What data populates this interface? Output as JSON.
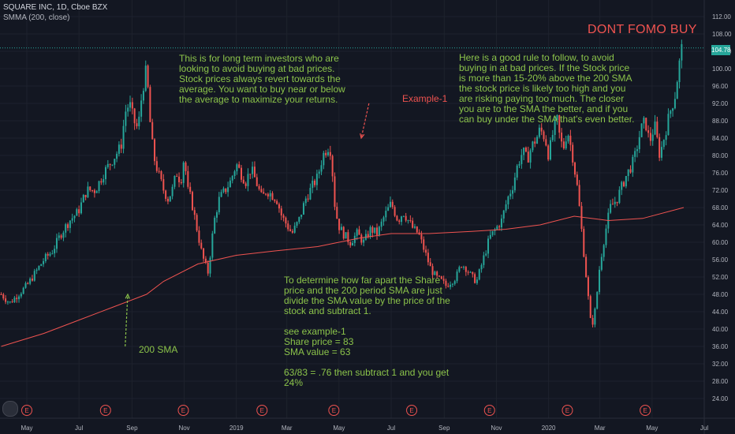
{
  "header": {
    "symbol_title": "SQUARE INC, 1D, Cboe BZX",
    "indicator": "SMMA (200, close)"
  },
  "annotations": {
    "headline": "DONT FOMO BUY",
    "note_left": "This is for long term investors who are\nlooking to avoid buying at bad prices.\nStock prices always revert towards the\naverage. You want to buy near or below\nthe average to maximize your returns.",
    "note_right": "Here is a good rule to follow, to avoid\nbuying in at bad prices. If the Stock price\nis more than 15-20% above the 200 SMA\nthe stock price is likely too high and you\nare risking paying too much. The closer\nyou are to the SMA the better, and if you\ncan buy under the SMA that's even better.",
    "note_bottom": "To determine how far apart the Share\nprice and the 200 period SMA are just\ndivide the SMA value by the price of the\nstock and subtract 1.\n\nsee example-1\nShare price = 83\nSMA value = 63\n\n63/83 = .76 then subtract 1 and you get\n24%",
    "example_label": "Example-1",
    "sma_label": "200 SMA"
  },
  "colors": {
    "background": "#131722",
    "up": "#26a69a",
    "down": "#ef5350",
    "sma": "#ef5350",
    "note": "#8bc34a",
    "grid": "#1e222d",
    "axis_text": "#b2b5be",
    "price_line": "#26a69a"
  },
  "chart_data": {
    "type": "candlestick",
    "title": "SQUARE INC, 1D, Cboe BZX",
    "ylim": [
      22,
      114
    ],
    "y_ticks": [
      "112.00",
      "108.00",
      "104.00",
      "100.00",
      "96.00",
      "92.00",
      "88.00",
      "84.00",
      "80.00",
      "76.00",
      "72.00",
      "68.00",
      "64.00",
      "60.00",
      "56.00",
      "52.00",
      "48.00",
      "44.00",
      "40.00",
      "36.00",
      "32.00",
      "28.00",
      "24.00"
    ],
    "x_ticks": [
      {
        "label": "May",
        "x": 0
      },
      {
        "label": "Jul",
        "x": 61
      },
      {
        "label": "Sep",
        "x": 123
      },
      {
        "label": "Nov",
        "x": 184
      },
      {
        "label": "2019",
        "x": 245
      },
      {
        "label": "Mar",
        "x": 304
      },
      {
        "label": "May",
        "x": 365
      },
      {
        "label": "Jul",
        "x": 426
      },
      {
        "label": "Sep",
        "x": 488
      },
      {
        "label": "Nov",
        "x": 549
      },
      {
        "label": "2020",
        "x": 610
      },
      {
        "label": "Mar",
        "x": 670
      },
      {
        "label": "May",
        "x": 731
      },
      {
        "label": "Jul",
        "x": 792
      }
    ],
    "last_price": "104.78",
    "earnings_marker": "E",
    "earnings_days": [
      0,
      92,
      183,
      275,
      359,
      450,
      541,
      632,
      723
    ],
    "close_path": [
      [
        -30,
        48
      ],
      [
        -20,
        46
      ],
      [
        -10,
        48
      ],
      [
        0,
        50
      ],
      [
        10,
        53
      ],
      [
        20,
        56
      ],
      [
        30,
        58
      ],
      [
        40,
        62
      ],
      [
        50,
        65
      ],
      [
        60,
        67
      ],
      [
        70,
        72
      ],
      [
        80,
        72
      ],
      [
        90,
        76
      ],
      [
        100,
        79
      ],
      [
        110,
        82
      ],
      [
        115,
        90
      ],
      [
        120,
        92
      ],
      [
        125,
        88
      ],
      [
        130,
        86
      ],
      [
        135,
        95
      ],
      [
        140,
        100
      ],
      [
        144,
        88
      ],
      [
        148,
        80
      ],
      [
        155,
        75
      ],
      [
        160,
        72
      ],
      [
        165,
        70
      ],
      [
        170,
        72
      ],
      [
        175,
        76
      ],
      [
        180,
        74
      ],
      [
        184,
        80
      ],
      [
        188,
        72
      ],
      [
        192,
        70
      ],
      [
        196,
        66
      ],
      [
        200,
        62
      ],
      [
        204,
        58
      ],
      [
        208,
        55
      ],
      [
        212,
        53
      ],
      [
        216,
        60
      ],
      [
        220,
        66
      ],
      [
        225,
        70
      ],
      [
        232,
        72
      ],
      [
        238,
        74
      ],
      [
        245,
        78
      ],
      [
        250,
        76
      ],
      [
        256,
        74
      ],
      [
        262,
        77
      ],
      [
        268,
        74
      ],
      [
        275,
        70
      ],
      [
        280,
        72
      ],
      [
        286,
        71
      ],
      [
        292,
        70
      ],
      [
        298,
        66
      ],
      [
        304,
        64
      ],
      [
        310,
        62
      ],
      [
        318,
        65
      ],
      [
        326,
        70
      ],
      [
        334,
        73
      ],
      [
        340,
        75
      ],
      [
        346,
        80
      ],
      [
        352,
        82
      ],
      [
        356,
        81
      ],
      [
        359,
        70
      ],
      [
        364,
        64
      ],
      [
        370,
        62
      ],
      [
        378,
        60
      ],
      [
        386,
        62
      ],
      [
        394,
        60
      ],
      [
        402,
        63
      ],
      [
        410,
        62
      ],
      [
        418,
        66
      ],
      [
        426,
        69
      ],
      [
        434,
        65
      ],
      [
        440,
        67
      ],
      [
        446,
        65
      ],
      [
        452,
        63
      ],
      [
        458,
        62
      ],
      [
        465,
        58
      ],
      [
        472,
        54
      ],
      [
        478,
        52
      ],
      [
        485,
        51
      ],
      [
        490,
        50
      ],
      [
        496,
        51
      ],
      [
        502,
        52
      ],
      [
        508,
        55
      ],
      [
        514,
        54
      ],
      [
        520,
        52
      ],
      [
        526,
        51
      ],
      [
        532,
        55
      ],
      [
        541,
        61
      ],
      [
        548,
        63
      ],
      [
        555,
        65
      ],
      [
        562,
        70
      ],
      [
        568,
        73
      ],
      [
        574,
        78
      ],
      [
        580,
        81
      ],
      [
        585,
        79
      ],
      [
        590,
        82
      ],
      [
        596,
        84
      ],
      [
        600,
        86
      ],
      [
        606,
        84
      ],
      [
        610,
        80
      ],
      [
        616,
        86
      ],
      [
        620,
        88
      ],
      [
        624,
        83
      ],
      [
        628,
        82
      ],
      [
        632,
        86
      ],
      [
        638,
        80
      ],
      [
        644,
        72
      ],
      [
        650,
        60
      ],
      [
        655,
        50
      ],
      [
        660,
        40
      ],
      [
        665,
        45
      ],
      [
        670,
        55
      ],
      [
        676,
        62
      ],
      [
        682,
        68
      ],
      [
        690,
        70
      ],
      [
        700,
        75
      ],
      [
        710,
        79
      ],
      [
        718,
        86
      ],
      [
        723,
        88
      ],
      [
        728,
        83
      ],
      [
        734,
        87
      ],
      [
        740,
        80
      ],
      [
        746,
        85
      ],
      [
        752,
        90
      ],
      [
        758,
        94
      ],
      [
        762,
        100
      ],
      [
        766,
        105
      ],
      [
        768,
        104.78
      ]
    ],
    "sma_path": [
      [
        -30,
        36
      ],
      [
        20,
        39
      ],
      [
        60,
        42
      ],
      [
        100,
        45
      ],
      [
        140,
        48
      ],
      [
        160,
        51
      ],
      [
        200,
        55
      ],
      [
        245,
        57
      ],
      [
        290,
        58
      ],
      [
        340,
        59
      ],
      [
        390,
        61
      ],
      [
        426,
        62
      ],
      [
        470,
        62
      ],
      [
        520,
        62.5
      ],
      [
        560,
        63
      ],
      [
        600,
        64
      ],
      [
        640,
        66
      ],
      [
        680,
        65
      ],
      [
        720,
        65.5
      ],
      [
        768,
        68
      ]
    ],
    "arrows": [
      {
        "from": [
          400,
          92
        ],
        "to": [
          391,
          84
        ]
      },
      {
        "from": [
          115,
          36
        ],
        "to": [
          118,
          48
        ]
      }
    ],
    "series": [
      {
        "name": "SMMA (200, close)",
        "type": "line"
      }
    ]
  }
}
